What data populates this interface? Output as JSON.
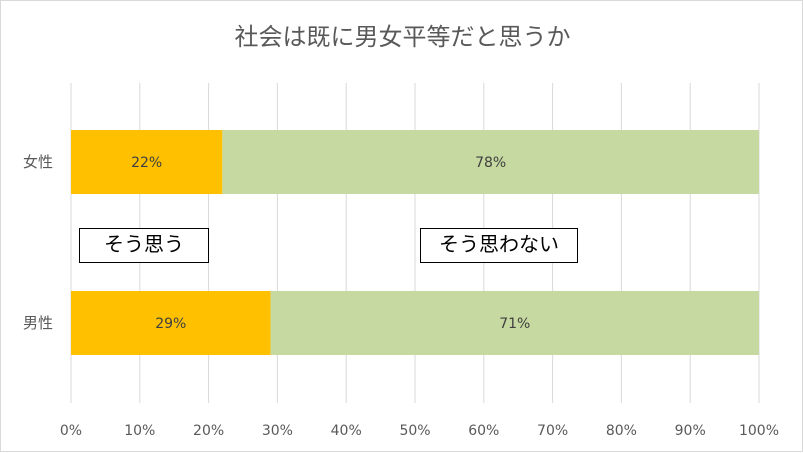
{
  "chart_data": {
    "type": "bar",
    "orientation": "horizontal",
    "stacked": "percent",
    "title": "社会は既に男女平等だと思うか",
    "categories": [
      "女性",
      "男性"
    ],
    "series": [
      {
        "name": "そう思う",
        "values": [
          22,
          29
        ],
        "labels": [
          "22%",
          "29%"
        ],
        "color": "#FFC000"
      },
      {
        "name": "そう思わない",
        "values": [
          78,
          71
        ],
        "labels": [
          "78%",
          "71%"
        ],
        "color": "#C5D9A0"
      }
    ],
    "x_ticks": [
      "0%",
      "10%",
      "20%",
      "30%",
      "40%",
      "50%",
      "60%",
      "70%",
      "80%",
      "90%",
      "100%"
    ],
    "xlim": [
      0,
      100
    ],
    "grid": true,
    "gridline_color": "#d9d9d9",
    "legend": "none"
  }
}
